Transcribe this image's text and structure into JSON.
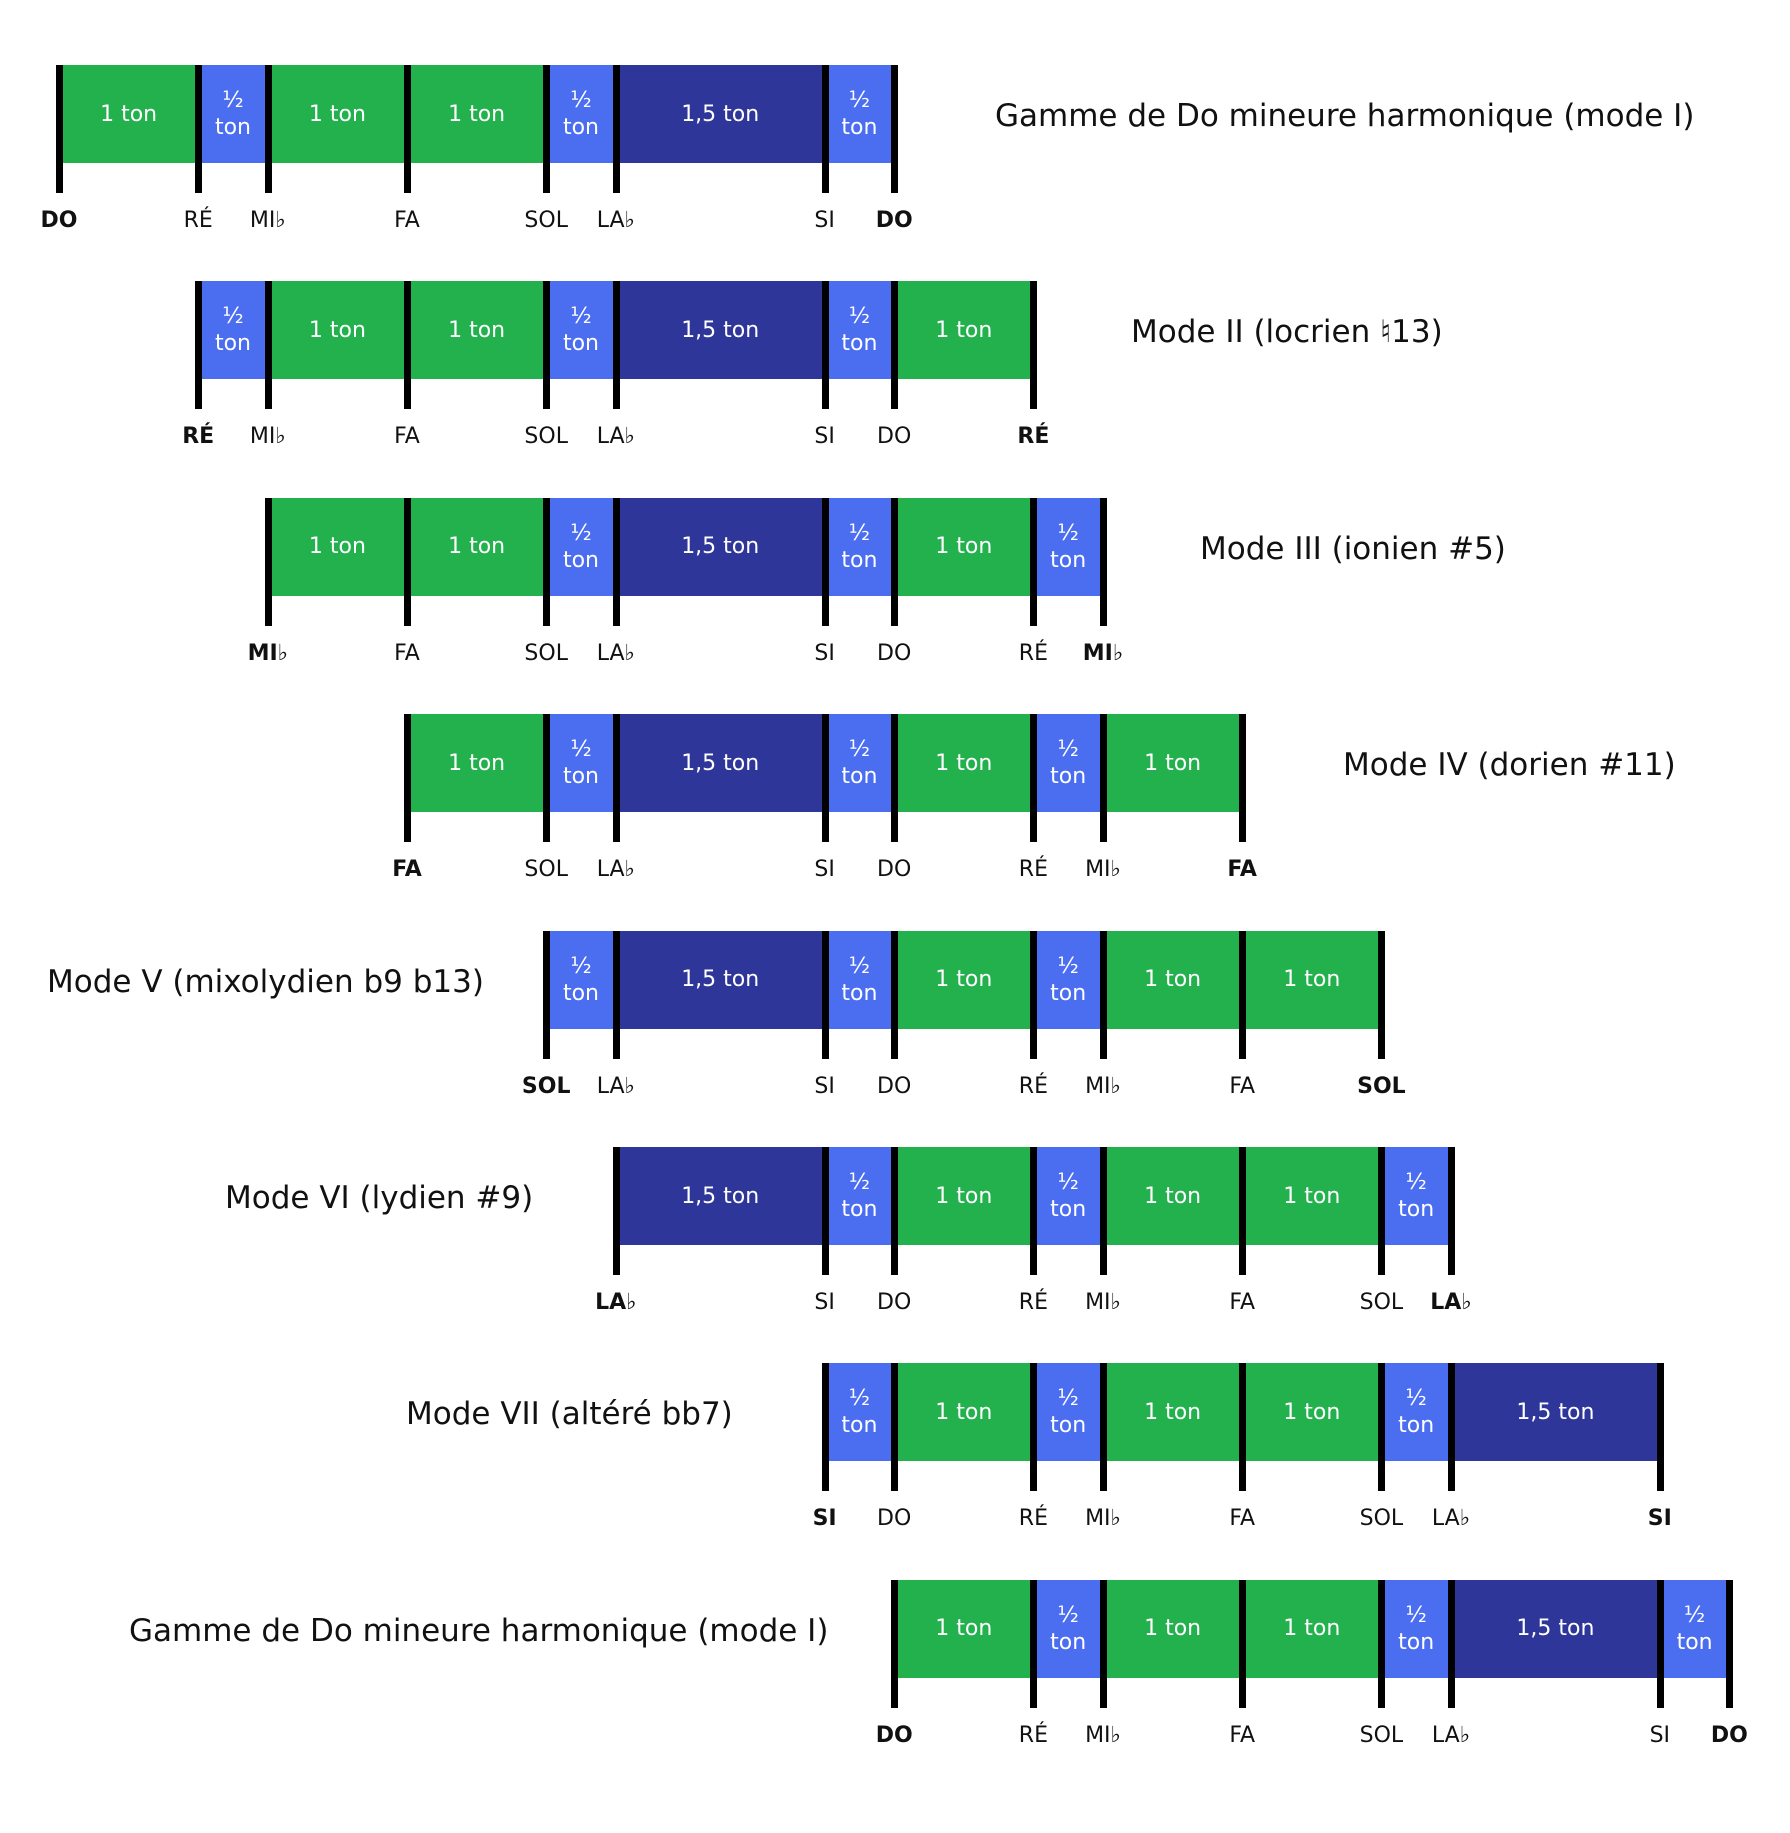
{
  "colors": {
    "one_tone": "#23B14D",
    "half_tone": "#4B6EF0",
    "tone_and_half": "#2E3699",
    "tick": "#000000"
  },
  "rows": [
    {
      "title": "Gamme de Do mineure harmonique (mode I)",
      "title_side": "right",
      "notes": [
        "DO",
        "RÉ",
        "MI♭",
        "FA",
        "SOL",
        "LA♭",
        "SI",
        "DO"
      ],
      "intervals": [
        "1 ton",
        "½ ton",
        "1 ton",
        "1 ton",
        "½ ton",
        "1,5 ton",
        "½ ton"
      ]
    },
    {
      "title": "Mode II (locrien ♮13)",
      "title_side": "right",
      "notes": [
        "RÉ",
        "MI♭",
        "FA",
        "SOL",
        "LA♭",
        "SI",
        "DO",
        "RÉ"
      ],
      "intervals": [
        "½ ton",
        "1 ton",
        "1 ton",
        "½ ton",
        "1,5 ton",
        "½ ton",
        "1 ton"
      ]
    },
    {
      "title": "Mode III (ionien #5)",
      "title_side": "right",
      "notes": [
        "MI♭",
        "FA",
        "SOL",
        "LA♭",
        "SI",
        "DO",
        "RÉ",
        "MI♭"
      ],
      "intervals": [
        "1 ton",
        "1 ton",
        "½ ton",
        "1,5 ton",
        "½ ton",
        "1 ton",
        "½ ton"
      ]
    },
    {
      "title": "Mode IV (dorien #11)",
      "title_side": "right",
      "notes": [
        "FA",
        "SOL",
        "LA♭",
        "SI",
        "DO",
        "RÉ",
        "MI♭",
        "FA"
      ],
      "intervals": [
        "1 ton",
        "½ ton",
        "1,5 ton",
        "½ ton",
        "1 ton",
        "½ ton",
        "1 ton"
      ]
    },
    {
      "title": "Mode V (mixolydien b9 b13)",
      "title_side": "left",
      "notes": [
        "SOL",
        "LA♭",
        "SI",
        "DO",
        "RÉ",
        "MI♭",
        "FA",
        "SOL"
      ],
      "intervals": [
        "½ ton",
        "1,5 ton",
        "½ ton",
        "1 ton",
        "½ ton",
        "1 ton",
        "1 ton"
      ]
    },
    {
      "title": "Mode VI (lydien #9)",
      "title_side": "left",
      "notes": [
        "LA♭",
        "SI",
        "DO",
        "RÉ",
        "MI♭",
        "FA",
        "SOL",
        "LA♭"
      ],
      "intervals": [
        "1,5 ton",
        "½ ton",
        "1 ton",
        "½ ton",
        "1 ton",
        "1 ton",
        "½ ton"
      ]
    },
    {
      "title": "Mode VII (altéré bb7)",
      "title_side": "left",
      "notes": [
        "SI",
        "DO",
        "RÉ",
        "MI♭",
        "FA",
        "SOL",
        "LA♭",
        "SI"
      ],
      "intervals": [
        "½ ton",
        "1 ton",
        "½ ton",
        "1 ton",
        "1 ton",
        "½ ton",
        "1,5 ton"
      ]
    },
    {
      "title": "Gamme de Do mineure harmonique (mode I)",
      "title_side": "left",
      "notes": [
        "DO",
        "RÉ",
        "MI♭",
        "FA",
        "SOL",
        "LA♭",
        "SI",
        "DO"
      ],
      "intervals": [
        "1 ton",
        "½ ton",
        "1 ton",
        "1 ton",
        "½ ton",
        "1,5 ton",
        "½ ton"
      ]
    }
  ]
}
